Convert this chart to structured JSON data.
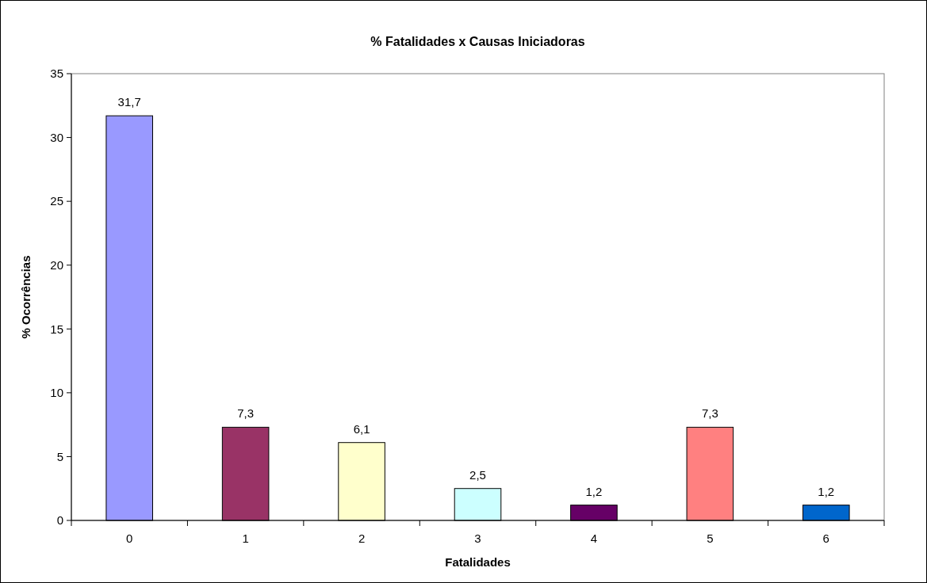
{
  "chart_data": {
    "type": "bar",
    "title": "% Fatalidades x Causas Iniciadoras",
    "xlabel": "Fatalidades",
    "ylabel": "% Ocorrências",
    "categories": [
      "0",
      "1",
      "2",
      "3",
      "4",
      "5",
      "6"
    ],
    "values": [
      31.7,
      7.3,
      6.1,
      2.5,
      1.2,
      7.3,
      1.2
    ],
    "colors": [
      "#9999ff",
      "#993366",
      "#ffffcc",
      "#ccffff",
      "#660066",
      "#ff8080",
      "#0066cc"
    ],
    "value_labels": [
      "31,7",
      "7,3",
      "6,1",
      "2,5",
      "1,2",
      "7,3",
      "1,2"
    ],
    "ylim": [
      0,
      35
    ],
    "yticks": [
      0,
      5,
      10,
      15,
      20,
      25,
      30,
      35
    ]
  }
}
